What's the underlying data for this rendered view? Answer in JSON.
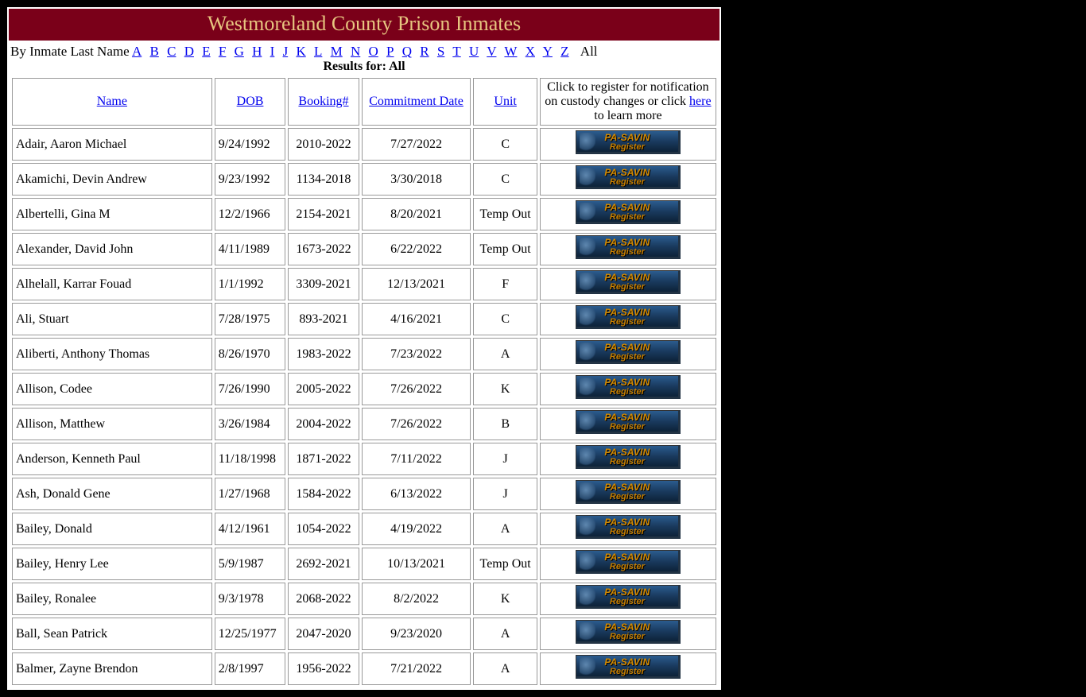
{
  "title": "Westmoreland County Prison Inmates",
  "filter_label": "By Inmate Last Name ",
  "letters": [
    "A",
    "B",
    "C",
    "D",
    "E",
    "F",
    "G",
    "H",
    "I",
    "J",
    "K",
    "L",
    "M",
    "N",
    "O",
    "P",
    "Q",
    "R",
    "S",
    "T",
    "U",
    "V",
    "W",
    "X",
    "Y",
    "Z"
  ],
  "all_label": "All",
  "results_for": "Results for: All",
  "headers": {
    "name": "Name",
    "dob": "DOB",
    "booking": "Booking#",
    "commitment": "Commitment Date",
    "unit": "Unit"
  },
  "register_note_pre": "Click to register for notification on custody changes or click ",
  "register_note_link": "here",
  "register_note_post": " to learn more",
  "savin_button": {
    "line1": "PA-SAVIN",
    "line2": "Register"
  },
  "colors": {
    "page_bg": "#000000",
    "content_bg": "#ffffff",
    "title_bg": "#7a0019",
    "title_fg": "#e7c680",
    "link": "#0000ee",
    "cell_border": "#999999",
    "btn_text": "#d48a00"
  },
  "rows": [
    {
      "name": "Adair, Aaron Michael",
      "dob": "9/24/1992",
      "booking": "2010-2022",
      "commit": "7/27/2022",
      "unit": "C"
    },
    {
      "name": "Akamichi, Devin Andrew",
      "dob": "9/23/1992",
      "booking": "1134-2018",
      "commit": "3/30/2018",
      "unit": "C"
    },
    {
      "name": "Albertelli, Gina M",
      "dob": "12/2/1966",
      "booking": "2154-2021",
      "commit": "8/20/2021",
      "unit": "Temp Out"
    },
    {
      "name": "Alexander, David John",
      "dob": "4/11/1989",
      "booking": "1673-2022",
      "commit": "6/22/2022",
      "unit": "Temp Out"
    },
    {
      "name": "Alhelall, Karrar Fouad",
      "dob": "1/1/1992",
      "booking": "3309-2021",
      "commit": "12/13/2021",
      "unit": "F"
    },
    {
      "name": "Ali, Stuart",
      "dob": "7/28/1975",
      "booking": "893-2021",
      "commit": "4/16/2021",
      "unit": "C"
    },
    {
      "name": "Aliberti, Anthony Thomas",
      "dob": "8/26/1970",
      "booking": "1983-2022",
      "commit": "7/23/2022",
      "unit": "A"
    },
    {
      "name": "Allison, Codee",
      "dob": "7/26/1990",
      "booking": "2005-2022",
      "commit": "7/26/2022",
      "unit": "K"
    },
    {
      "name": "Allison, Matthew",
      "dob": "3/26/1984",
      "booking": "2004-2022",
      "commit": "7/26/2022",
      "unit": "B"
    },
    {
      "name": "Anderson, Kenneth Paul",
      "dob": "11/18/1998",
      "booking": "1871-2022",
      "commit": "7/11/2022",
      "unit": "J"
    },
    {
      "name": "Ash, Donald Gene",
      "dob": "1/27/1968",
      "booking": "1584-2022",
      "commit": "6/13/2022",
      "unit": "J"
    },
    {
      "name": "Bailey, Donald",
      "dob": "4/12/1961",
      "booking": "1054-2022",
      "commit": "4/19/2022",
      "unit": "A"
    },
    {
      "name": "Bailey, Henry Lee",
      "dob": "5/9/1987",
      "booking": "2692-2021",
      "commit": "10/13/2021",
      "unit": "Temp Out"
    },
    {
      "name": "Bailey, Ronalee",
      "dob": "9/3/1978",
      "booking": "2068-2022",
      "commit": "8/2/2022",
      "unit": "K"
    },
    {
      "name": "Ball, Sean Patrick",
      "dob": "12/25/1977",
      "booking": "2047-2020",
      "commit": "9/23/2020",
      "unit": "A"
    },
    {
      "name": "Balmer, Zayne Brendon",
      "dob": "2/8/1997",
      "booking": "1956-2022",
      "commit": "7/21/2022",
      "unit": "A"
    }
  ]
}
